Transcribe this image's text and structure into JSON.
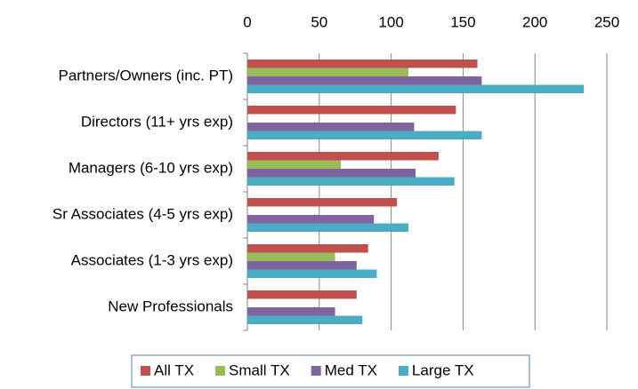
{
  "chart_data": {
    "type": "hbar",
    "categories": [
      "Partners/Owners (inc. PT)",
      "Directors (11+ yrs exp)",
      "Managers (6-10 yrs exp)",
      "Sr Associates (4-5 yrs exp)",
      "Associates (1-3 yrs exp)",
      "New Professionals"
    ],
    "series": [
      {
        "name": "All TX",
        "color": "#c0504d",
        "values": [
          160,
          145,
          133,
          104,
          84,
          76
        ]
      },
      {
        "name": "Small TX",
        "color": "#9bbb59",
        "values": [
          112,
          null,
          65,
          null,
          61,
          null
        ]
      },
      {
        "name": "Med TX",
        "color": "#8064a2",
        "values": [
          163,
          116,
          117,
          88,
          76,
          61
        ]
      },
      {
        "name": "Large TX",
        "color": "#4bacc6",
        "values": [
          234,
          163,
          144,
          112,
          90,
          80
        ]
      }
    ],
    "xlim": [
      0,
      250
    ],
    "xticks": [
      0,
      50,
      100,
      150,
      200,
      250
    ],
    "grid": true,
    "legend": "bottom"
  }
}
